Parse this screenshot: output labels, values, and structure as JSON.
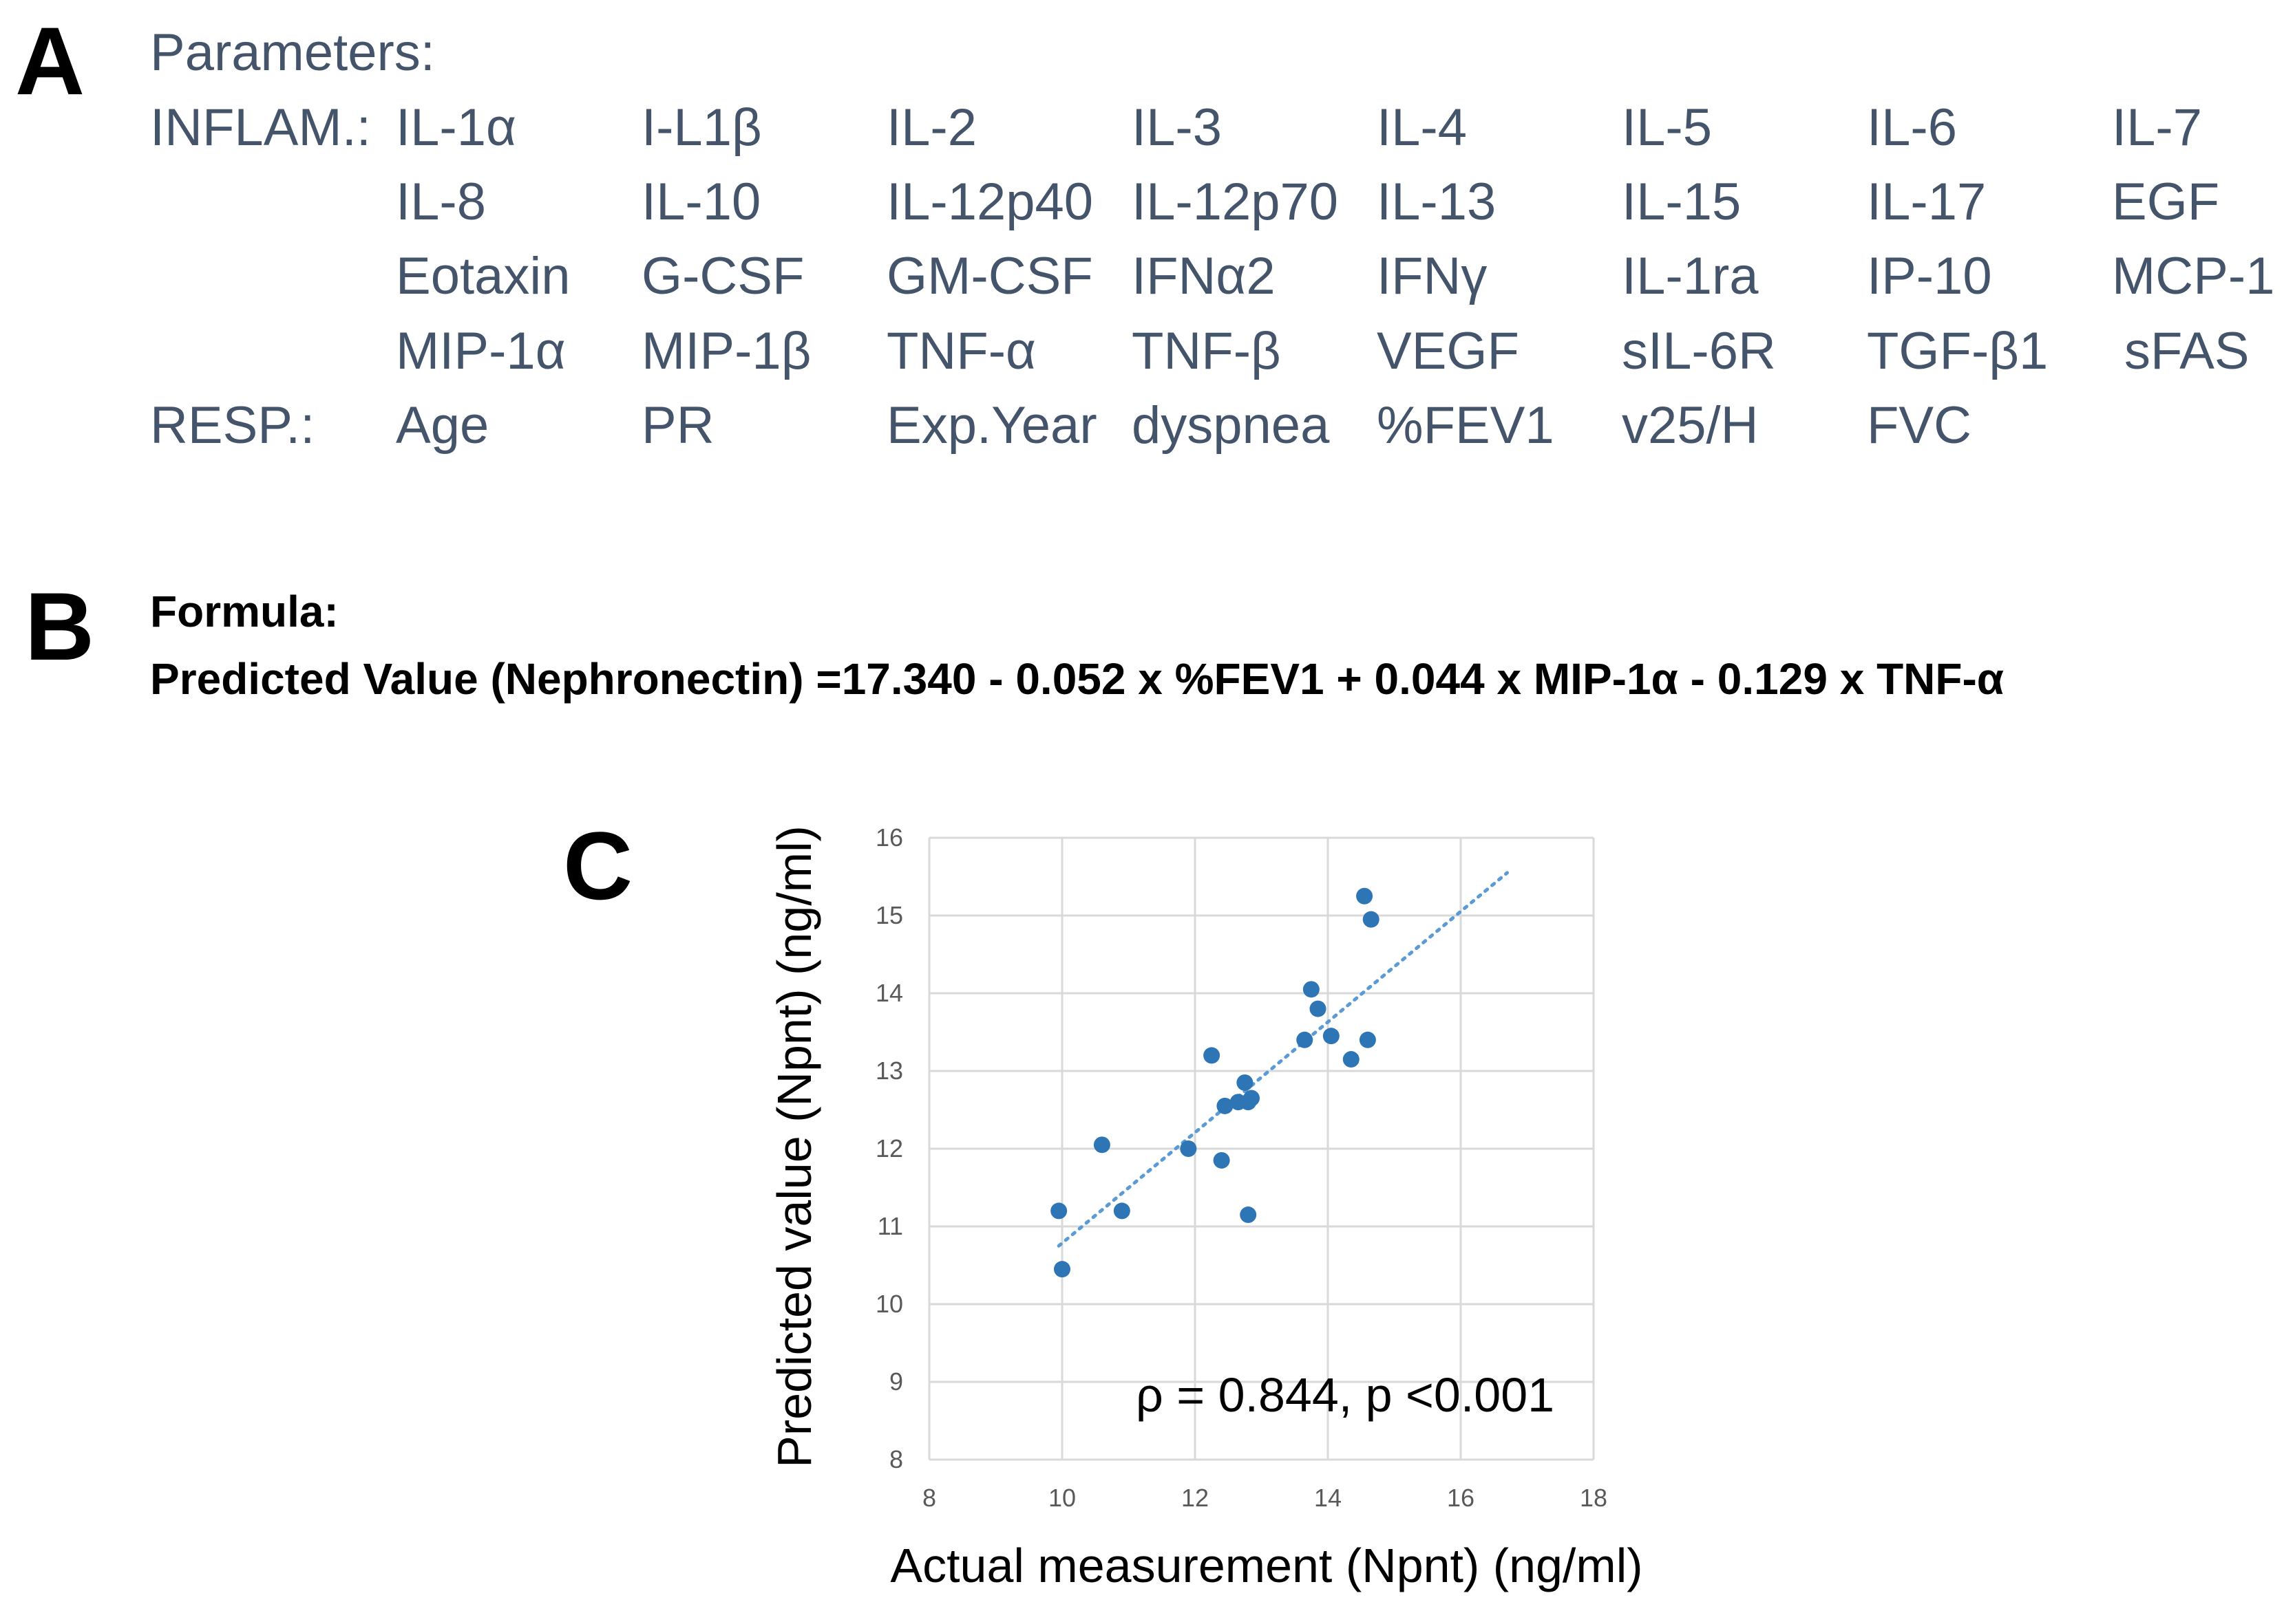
{
  "panel_a": {
    "letter": "A",
    "title": "Parameters:",
    "inflam_label": "INFLAM.:",
    "resp_label": "RESP.:",
    "inflam_rows": [
      [
        "IL-1α",
        "I-L1β",
        "IL-2",
        "IL-3",
        "IL-4",
        "IL-5",
        "IL-6",
        "IL-7"
      ],
      [
        "IL-8",
        "IL-10",
        "IL-12p40",
        "IL-12p70",
        "IL-13",
        "IL-15",
        "IL-17",
        "EGF"
      ],
      [
        "Eotaxin",
        "G-CSF",
        "GM-CSF",
        "IFNα2",
        "IFNγ",
        "IL-1ra",
        "IP-10",
        "MCP-1"
      ],
      [
        "MIP-1α",
        "MIP-1β",
        "TNF-α",
        "TNF-β",
        "VEGF",
        "sIL-6R",
        "TGF-β1",
        "sFAS"
      ]
    ],
    "resp_row": [
      "Age",
      "PR",
      "Exp.Year",
      "dyspnea",
      "%FEV1",
      "v25/H",
      "FVC"
    ]
  },
  "panel_b": {
    "letter": "B",
    "formula_label": "Formula:",
    "formula": "Predicted Value (Nephronectin) =17.340 - 0.052 x %FEV1 + 0.044 x MIP-1α - 0.129 x TNF-α"
  },
  "panel_c": {
    "letter": "C",
    "point_color": "#2e75b6",
    "trend_color": "#5b9bd5",
    "grid_color": "#d9d9d9"
  },
  "chart_data": {
    "type": "scatter",
    "title": "",
    "xlabel": "Actual measurement (Npnt) (ng/ml)",
    "ylabel": "Predicted value (Npnt) (ng/ml)",
    "xlim": [
      8,
      18
    ],
    "ylim": [
      8,
      16
    ],
    "xticks": [
      8,
      10,
      12,
      14,
      16,
      18
    ],
    "yticks": [
      8,
      9,
      10,
      11,
      12,
      13,
      14,
      15,
      16
    ],
    "grid": true,
    "annotation": "ρ = 0.844, p <0.001",
    "points": [
      {
        "x": 9.95,
        "y": 11.2
      },
      {
        "x": 10.0,
        "y": 10.45
      },
      {
        "x": 10.6,
        "y": 12.05
      },
      {
        "x": 10.9,
        "y": 11.2
      },
      {
        "x": 11.9,
        "y": 12.0
      },
      {
        "x": 12.25,
        "y": 13.2
      },
      {
        "x": 12.4,
        "y": 11.85
      },
      {
        "x": 12.45,
        "y": 12.55
      },
      {
        "x": 12.65,
        "y": 12.6
      },
      {
        "x": 12.75,
        "y": 12.85
      },
      {
        "x": 12.8,
        "y": 12.6
      },
      {
        "x": 12.8,
        "y": 11.15
      },
      {
        "x": 12.85,
        "y": 12.65
      },
      {
        "x": 13.65,
        "y": 13.4
      },
      {
        "x": 13.75,
        "y": 14.05
      },
      {
        "x": 13.85,
        "y": 13.8
      },
      {
        "x": 14.05,
        "y": 13.45
      },
      {
        "x": 14.35,
        "y": 13.15
      },
      {
        "x": 14.55,
        "y": 15.25
      },
      {
        "x": 14.65,
        "y": 14.95
      },
      {
        "x": 14.6,
        "y": 13.4
      }
    ],
    "trendline": {
      "x": [
        9.95,
        16.7
      ],
      "y": [
        10.75,
        15.55
      ]
    }
  }
}
